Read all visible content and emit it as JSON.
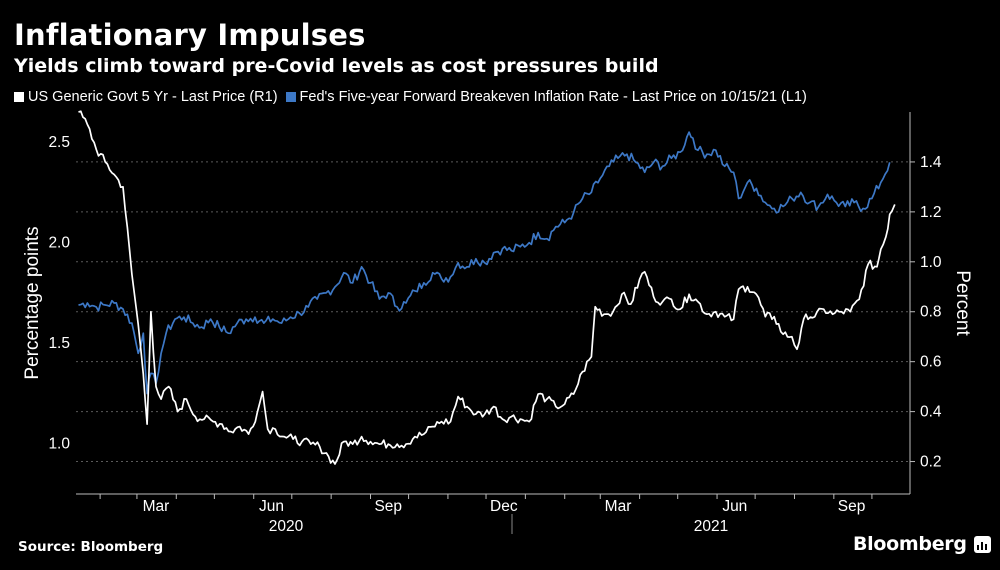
{
  "title": "Inflationary Impulses",
  "subtitle": "Yields climb toward pre-Covid levels as cost pressures build",
  "source": "Source: Bloomberg",
  "brand": "Bloomberg",
  "colors": {
    "background": "#000000",
    "yield_line": "#ffffff",
    "breakeven_line": "#3d78c6",
    "grid": "#5a5a5a"
  },
  "chart_data": {
    "type": "line",
    "left_axis_label": "Percentage points",
    "right_axis_label": "Percent",
    "left_ylim": [
      0.75,
      2.65
    ],
    "right_ylim": [
      0.07,
      1.6
    ],
    "left_ticks": [
      "1.0",
      "1.5",
      "2.0",
      "2.5"
    ],
    "right_ticks": [
      "0.2",
      "0.4",
      "0.6",
      "0.8",
      "1.0",
      "1.2",
      "1.4"
    ],
    "x_ticks": [
      "Mar",
      "Jun",
      "Sep",
      "Dec",
      "Mar",
      "Jun",
      "Sep"
    ],
    "year_labels": [
      "2020",
      "2021"
    ],
    "grid": "horizontal dotted",
    "legend_position": "top-left",
    "series": [
      {
        "name": "US Generic Govt 5 Yr - Last Price (R1)",
        "axis": "right",
        "color": "#ffffff",
        "points": [
          [
            "2020-01-15",
            1.6
          ],
          [
            "2020-01-22",
            1.55
          ],
          [
            "2020-01-29",
            1.45
          ],
          [
            "2020-02-05",
            1.4
          ],
          [
            "2020-02-12",
            1.35
          ],
          [
            "2020-02-19",
            1.3
          ],
          [
            "2020-02-26",
            0.95
          ],
          [
            "2020-03-02",
            0.75
          ],
          [
            "2020-03-06",
            0.55
          ],
          [
            "2020-03-09",
            0.35
          ],
          [
            "2020-03-12",
            0.8
          ],
          [
            "2020-03-16",
            0.5
          ],
          [
            "2020-03-20",
            0.45
          ],
          [
            "2020-03-26",
            0.5
          ],
          [
            "2020-04-02",
            0.4
          ],
          [
            "2020-04-09",
            0.45
          ],
          [
            "2020-04-16",
            0.38
          ],
          [
            "2020-04-23",
            0.37
          ],
          [
            "2020-04-30",
            0.36
          ],
          [
            "2020-05-07",
            0.35
          ],
          [
            "2020-05-14",
            0.32
          ],
          [
            "2020-05-21",
            0.34
          ],
          [
            "2020-05-28",
            0.31
          ],
          [
            "2020-06-04",
            0.4
          ],
          [
            "2020-06-08",
            0.48
          ],
          [
            "2020-06-12",
            0.33
          ],
          [
            "2020-06-18",
            0.33
          ],
          [
            "2020-06-25",
            0.3
          ],
          [
            "2020-07-02",
            0.29
          ],
          [
            "2020-07-09",
            0.28
          ],
          [
            "2020-07-16",
            0.27
          ],
          [
            "2020-07-23",
            0.26
          ],
          [
            "2020-07-30",
            0.22
          ],
          [
            "2020-08-04",
            0.19
          ],
          [
            "2020-08-11",
            0.28
          ],
          [
            "2020-08-18",
            0.27
          ],
          [
            "2020-08-25",
            0.3
          ],
          [
            "2020-09-01",
            0.28
          ],
          [
            "2020-09-08",
            0.27
          ],
          [
            "2020-09-15",
            0.27
          ],
          [
            "2020-09-22",
            0.27
          ],
          [
            "2020-09-29",
            0.27
          ],
          [
            "2020-10-06",
            0.3
          ],
          [
            "2020-10-13",
            0.31
          ],
          [
            "2020-10-20",
            0.34
          ],
          [
            "2020-10-27",
            0.36
          ],
          [
            "2020-11-03",
            0.36
          ],
          [
            "2020-11-09",
            0.46
          ],
          [
            "2020-11-16",
            0.42
          ],
          [
            "2020-11-23",
            0.39
          ],
          [
            "2020-11-30",
            0.39
          ],
          [
            "2020-12-07",
            0.42
          ],
          [
            "2020-12-14",
            0.37
          ],
          [
            "2020-12-21",
            0.38
          ],
          [
            "2020-12-28",
            0.37
          ],
          [
            "2021-01-04",
            0.36
          ],
          [
            "2021-01-11",
            0.47
          ],
          [
            "2021-01-18",
            0.45
          ],
          [
            "2021-01-25",
            0.42
          ],
          [
            "2021-02-01",
            0.43
          ],
          [
            "2021-02-08",
            0.47
          ],
          [
            "2021-02-15",
            0.56
          ],
          [
            "2021-02-22",
            0.62
          ],
          [
            "2021-02-25",
            0.82
          ],
          [
            "2021-03-04",
            0.79
          ],
          [
            "2021-03-11",
            0.8
          ],
          [
            "2021-03-18",
            0.87
          ],
          [
            "2021-03-25",
            0.83
          ],
          [
            "2021-04-01",
            0.93
          ],
          [
            "2021-04-05",
            0.96
          ],
          [
            "2021-04-12",
            0.86
          ],
          [
            "2021-04-19",
            0.84
          ],
          [
            "2021-04-26",
            0.85
          ],
          [
            "2021-05-03",
            0.81
          ],
          [
            "2021-05-10",
            0.87
          ],
          [
            "2021-05-17",
            0.84
          ],
          [
            "2021-05-24",
            0.79
          ],
          [
            "2021-05-31",
            0.8
          ],
          [
            "2021-06-07",
            0.78
          ],
          [
            "2021-06-14",
            0.77
          ],
          [
            "2021-06-18",
            0.89
          ],
          [
            "2021-06-25",
            0.9
          ],
          [
            "2021-07-02",
            0.87
          ],
          [
            "2021-07-09",
            0.78
          ],
          [
            "2021-07-16",
            0.78
          ],
          [
            "2021-07-23",
            0.71
          ],
          [
            "2021-07-30",
            0.7
          ],
          [
            "2021-08-03",
            0.65
          ],
          [
            "2021-08-10",
            0.79
          ],
          [
            "2021-08-17",
            0.78
          ],
          [
            "2021-08-24",
            0.81
          ],
          [
            "2021-08-31",
            0.79
          ],
          [
            "2021-09-07",
            0.8
          ],
          [
            "2021-09-14",
            0.8
          ],
          [
            "2021-09-21",
            0.85
          ],
          [
            "2021-09-28",
            0.99
          ],
          [
            "2021-10-05",
            0.98
          ],
          [
            "2021-10-08",
            1.05
          ],
          [
            "2021-10-12",
            1.1
          ],
          [
            "2021-10-15",
            1.19
          ],
          [
            "2021-10-19",
            1.23
          ]
        ]
      },
      {
        "name": "Fed's Five-year Forward Breakeven Inflation Rate - Last Price on 10/15/21 (L1)",
        "axis": "left",
        "color": "#3d78c6",
        "points": [
          [
            "2020-01-15",
            1.69
          ],
          [
            "2020-01-22",
            1.7
          ],
          [
            "2020-01-29",
            1.68
          ],
          [
            "2020-02-05",
            1.69
          ],
          [
            "2020-02-12",
            1.7
          ],
          [
            "2020-02-19",
            1.67
          ],
          [
            "2020-02-26",
            1.6
          ],
          [
            "2020-03-02",
            1.45
          ],
          [
            "2020-03-06",
            1.55
          ],
          [
            "2020-03-09",
            1.25
          ],
          [
            "2020-03-12",
            1.35
          ],
          [
            "2020-03-16",
            1.3
          ],
          [
            "2020-03-20",
            1.45
          ],
          [
            "2020-03-24",
            1.55
          ],
          [
            "2020-03-31",
            1.62
          ],
          [
            "2020-04-07",
            1.63
          ],
          [
            "2020-04-14",
            1.6
          ],
          [
            "2020-04-21",
            1.58
          ],
          [
            "2020-04-28",
            1.62
          ],
          [
            "2020-05-05",
            1.58
          ],
          [
            "2020-05-12",
            1.55
          ],
          [
            "2020-05-19",
            1.6
          ],
          [
            "2020-05-26",
            1.62
          ],
          [
            "2020-06-02",
            1.63
          ],
          [
            "2020-06-09",
            1.6
          ],
          [
            "2020-06-16",
            1.62
          ],
          [
            "2020-06-23",
            1.6
          ],
          [
            "2020-06-30",
            1.63
          ],
          [
            "2020-07-07",
            1.65
          ],
          [
            "2020-07-14",
            1.68
          ],
          [
            "2020-07-21",
            1.72
          ],
          [
            "2020-07-28",
            1.75
          ],
          [
            "2020-08-04",
            1.78
          ],
          [
            "2020-08-11",
            1.85
          ],
          [
            "2020-08-18",
            1.8
          ],
          [
            "2020-08-25",
            1.88
          ],
          [
            "2020-09-01",
            1.8
          ],
          [
            "2020-09-08",
            1.72
          ],
          [
            "2020-09-15",
            1.75
          ],
          [
            "2020-09-22",
            1.68
          ],
          [
            "2020-09-29",
            1.7
          ],
          [
            "2020-10-06",
            1.76
          ],
          [
            "2020-10-13",
            1.8
          ],
          [
            "2020-10-20",
            1.85
          ],
          [
            "2020-10-27",
            1.82
          ],
          [
            "2020-11-03",
            1.83
          ],
          [
            "2020-11-09",
            1.9
          ],
          [
            "2020-11-16",
            1.88
          ],
          [
            "2020-11-23",
            1.92
          ],
          [
            "2020-11-30",
            1.9
          ],
          [
            "2020-12-07",
            1.95
          ],
          [
            "2020-12-14",
            1.97
          ],
          [
            "2020-12-21",
            1.96
          ],
          [
            "2020-12-28",
            1.98
          ],
          [
            "2021-01-04",
            2.0
          ],
          [
            "2021-01-11",
            2.05
          ],
          [
            "2021-01-18",
            2.02
          ],
          [
            "2021-01-25",
            2.08
          ],
          [
            "2021-02-01",
            2.1
          ],
          [
            "2021-02-08",
            2.15
          ],
          [
            "2021-02-15",
            2.22
          ],
          [
            "2021-02-22",
            2.25
          ],
          [
            "2021-03-01",
            2.32
          ],
          [
            "2021-03-08",
            2.38
          ],
          [
            "2021-03-15",
            2.42
          ],
          [
            "2021-03-22",
            2.44
          ],
          [
            "2021-03-29",
            2.4
          ],
          [
            "2021-04-05",
            2.35
          ],
          [
            "2021-04-12",
            2.4
          ],
          [
            "2021-04-19",
            2.38
          ],
          [
            "2021-04-26",
            2.42
          ],
          [
            "2021-05-03",
            2.45
          ],
          [
            "2021-05-10",
            2.55
          ],
          [
            "2021-05-13",
            2.52
          ],
          [
            "2021-05-17",
            2.46
          ],
          [
            "2021-05-24",
            2.44
          ],
          [
            "2021-05-31",
            2.46
          ],
          [
            "2021-06-07",
            2.38
          ],
          [
            "2021-06-14",
            2.35
          ],
          [
            "2021-06-18",
            2.22
          ],
          [
            "2021-06-25",
            2.3
          ],
          [
            "2021-07-02",
            2.27
          ],
          [
            "2021-07-09",
            2.2
          ],
          [
            "2021-07-16",
            2.17
          ],
          [
            "2021-07-23",
            2.18
          ],
          [
            "2021-07-30",
            2.22
          ],
          [
            "2021-08-06",
            2.25
          ],
          [
            "2021-08-13",
            2.2
          ],
          [
            "2021-08-20",
            2.18
          ],
          [
            "2021-08-27",
            2.24
          ],
          [
            "2021-09-03",
            2.2
          ],
          [
            "2021-09-10",
            2.18
          ],
          [
            "2021-09-17",
            2.2
          ],
          [
            "2021-09-24",
            2.17
          ],
          [
            "2021-10-01",
            2.22
          ],
          [
            "2021-10-08",
            2.3
          ],
          [
            "2021-10-15",
            2.4
          ]
        ]
      }
    ]
  }
}
